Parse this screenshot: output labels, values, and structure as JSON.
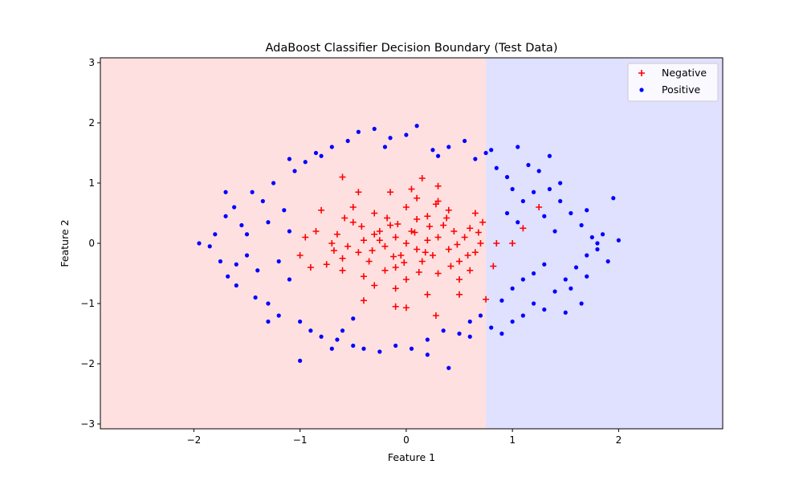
{
  "chart_data": {
    "type": "scatter",
    "title": "AdaBoost Classifier Decision Boundary (Test Data)",
    "xlabel": "Feature 1",
    "ylabel": "Feature 2",
    "xlim": [
      -2.88,
      2.98
    ],
    "ylim": [
      -3.08,
      3.08
    ],
    "x_ticks": [
      -2,
      -1,
      0,
      1,
      2
    ],
    "x_tick_labels": [
      "−2",
      "−1",
      "0",
      "1",
      "2"
    ],
    "y_ticks": [
      -3,
      -2,
      -1,
      0,
      1,
      2,
      3
    ],
    "y_tick_labels": [
      "−3",
      "−2",
      "−1",
      "0",
      "1",
      "2",
      "3"
    ],
    "grid": false,
    "legend": {
      "position": "top-right",
      "entries": [
        "Negative",
        "Positive"
      ]
    },
    "decision_boundary": {
      "threshold_x": 0.75,
      "left_region_class": "Negative",
      "right_region_class": "Positive",
      "left_region_color": "#ffe0e0",
      "right_region_color": "#e0e0ff"
    },
    "series": [
      {
        "name": "Negative",
        "marker": "plus",
        "color": "#ff0000",
        "points": [
          [
            0.0,
            0.0
          ],
          [
            0.1,
            -0.1
          ],
          [
            -0.1,
            0.1
          ],
          [
            0.2,
            0.05
          ],
          [
            -0.2,
            -0.05
          ],
          [
            0.05,
            0.2
          ],
          [
            -0.05,
            -0.2
          ],
          [
            0.3,
            0.1
          ],
          [
            -0.3,
            0.15
          ],
          [
            0.15,
            -0.3
          ],
          [
            -0.15,
            0.3
          ],
          [
            0.25,
            -0.2
          ],
          [
            -0.25,
            0.2
          ],
          [
            0.35,
            0.3
          ],
          [
            -0.35,
            -0.3
          ],
          [
            0.4,
            -0.1
          ],
          [
            -0.4,
            0.05
          ],
          [
            0.1,
            0.4
          ],
          [
            -0.1,
            -0.4
          ],
          [
            0.45,
            0.2
          ],
          [
            -0.45,
            -0.15
          ],
          [
            0.2,
            0.45
          ],
          [
            -0.2,
            -0.45
          ],
          [
            0.5,
            -0.3
          ],
          [
            -0.5,
            0.35
          ],
          [
            0.55,
            0.1
          ],
          [
            -0.55,
            -0.05
          ],
          [
            0.3,
            -0.5
          ],
          [
            -0.3,
            0.5
          ],
          [
            0.6,
            0.25
          ],
          [
            -0.6,
            -0.25
          ],
          [
            0.0,
            0.6
          ],
          [
            0.0,
            -0.6
          ],
          [
            0.65,
            -0.15
          ],
          [
            -0.65,
            0.15
          ],
          [
            0.4,
            0.55
          ],
          [
            -0.4,
            -0.55
          ],
          [
            0.7,
            0.0
          ],
          [
            -0.7,
            0.0
          ],
          [
            0.5,
            -0.6
          ],
          [
            -0.5,
            0.6
          ],
          [
            0.1,
            0.75
          ],
          [
            -0.1,
            -0.75
          ],
          [
            0.72,
            0.35
          ],
          [
            -0.75,
            -0.35
          ],
          [
            0.3,
            0.7
          ],
          [
            -0.3,
            -0.7
          ],
          [
            0.05,
            0.9
          ],
          [
            -0.15,
            0.85
          ],
          [
            0.2,
            -0.85
          ],
          [
            -0.8,
            0.55
          ],
          [
            -0.6,
            1.1
          ],
          [
            -0.45,
            0.85
          ],
          [
            0.3,
            0.95
          ],
          [
            -0.9,
            -0.4
          ],
          [
            -0.95,
            0.1
          ],
          [
            -1.0,
            -0.2
          ],
          [
            -0.85,
            0.2
          ],
          [
            -0.6,
            -0.45
          ],
          [
            0.6,
            -0.45
          ],
          [
            0.65,
            0.5
          ],
          [
            -0.4,
            -0.95
          ],
          [
            -0.1,
            -1.05
          ],
          [
            0.15,
            1.08
          ],
          [
            0.28,
            -1.2
          ],
          [
            0.5,
            -0.85
          ],
          [
            0.75,
            -0.93
          ],
          [
            0.82,
            -0.38
          ],
          [
            0.0,
            -1.07
          ],
          [
            0.28,
            0.65
          ],
          [
            -0.25,
            0.05
          ],
          [
            0.18,
            -0.15
          ],
          [
            -0.08,
            0.32
          ],
          [
            0.42,
            -0.38
          ],
          [
            -0.12,
            -0.22
          ],
          [
            0.08,
            0.18
          ],
          [
            -0.32,
            -0.12
          ],
          [
            0.22,
            0.28
          ],
          [
            -0.18,
            0.42
          ],
          [
            0.12,
            -0.48
          ],
          [
            0.38,
            0.42
          ],
          [
            -0.42,
            0.28
          ],
          [
            0.48,
            -0.02
          ],
          [
            -0.02,
            -0.32
          ],
          [
            0.58,
            -0.2
          ],
          [
            -0.58,
            0.42
          ],
          [
            0.68,
            0.18
          ],
          [
            -0.68,
            -0.12
          ],
          [
            1.0,
            0.0
          ],
          [
            1.1,
            0.25
          ],
          [
            1.25,
            0.6
          ],
          [
            0.85,
            0.0
          ]
        ]
      },
      {
        "name": "Positive",
        "marker": "circle",
        "color": "#0000ff",
        "points": [
          [
            -1.85,
            -0.05
          ],
          [
            -1.8,
            0.15
          ],
          [
            -1.75,
            -0.3
          ],
          [
            -1.7,
            0.45
          ],
          [
            -1.68,
            -0.55
          ],
          [
            -1.62,
            0.6
          ],
          [
            -1.6,
            -0.7
          ],
          [
            -1.55,
            0.3
          ],
          [
            -1.5,
            -0.2
          ],
          [
            -1.45,
            0.85
          ],
          [
            -1.42,
            -0.9
          ],
          [
            -1.35,
            0.7
          ],
          [
            -1.3,
            -1.0
          ],
          [
            -1.25,
            1.0
          ],
          [
            -1.2,
            -1.2
          ],
          [
            -1.15,
            0.55
          ],
          [
            -1.1,
            -0.6
          ],
          [
            -1.05,
            1.2
          ],
          [
            -1.0,
            -1.3
          ],
          [
            -0.95,
            1.35
          ],
          [
            -0.9,
            -1.45
          ],
          [
            -0.85,
            1.5
          ],
          [
            -0.8,
            -1.55
          ],
          [
            -0.7,
            1.6
          ],
          [
            -0.65,
            -1.6
          ],
          [
            -0.55,
            1.7
          ],
          [
            -0.5,
            -1.7
          ],
          [
            -0.45,
            1.85
          ],
          [
            -0.4,
            -1.75
          ],
          [
            -0.3,
            1.9
          ],
          [
            -0.25,
            -1.8
          ],
          [
            -0.15,
            1.75
          ],
          [
            -0.1,
            -1.7
          ],
          [
            0.0,
            1.8
          ],
          [
            0.05,
            -1.75
          ],
          [
            0.1,
            1.95
          ],
          [
            0.2,
            -1.6
          ],
          [
            0.25,
            1.55
          ],
          [
            0.35,
            -1.45
          ],
          [
            0.4,
            1.6
          ],
          [
            0.5,
            -1.5
          ],
          [
            0.55,
            1.7
          ],
          [
            0.6,
            -1.3
          ],
          [
            0.65,
            1.4
          ],
          [
            0.7,
            -1.2
          ],
          [
            0.75,
            1.5
          ],
          [
            0.8,
            -1.4
          ],
          [
            0.85,
            1.25
          ],
          [
            0.9,
            -1.5
          ],
          [
            0.95,
            1.1
          ],
          [
            1.0,
            -1.3
          ],
          [
            1.05,
            1.6
          ],
          [
            1.1,
            -1.2
          ],
          [
            1.15,
            1.3
          ],
          [
            1.2,
            -1.0
          ],
          [
            1.25,
            1.2
          ],
          [
            1.3,
            -1.1
          ],
          [
            1.35,
            0.9
          ],
          [
            1.4,
            -0.8
          ],
          [
            1.45,
            0.7
          ],
          [
            1.5,
            -0.6
          ],
          [
            1.55,
            0.5
          ],
          [
            1.6,
            -0.4
          ],
          [
            1.65,
            0.3
          ],
          [
            1.7,
            -0.2
          ],
          [
            1.75,
            0.1
          ],
          [
            1.8,
            0.0
          ],
          [
            1.85,
            0.15
          ],
          [
            1.9,
            -0.3
          ],
          [
            1.95,
            0.75
          ],
          [
            2.0,
            0.05
          ],
          [
            1.55,
            -0.75
          ],
          [
            1.7,
            0.55
          ],
          [
            1.65,
            -1.0
          ],
          [
            0.9,
            -0.95
          ],
          [
            1.0,
            -0.75
          ],
          [
            1.1,
            -0.6
          ],
          [
            1.2,
            -0.5
          ],
          [
            1.3,
            -0.35
          ],
          [
            1.0,
            0.9
          ],
          [
            1.1,
            0.7
          ],
          [
            1.2,
            0.85
          ],
          [
            1.3,
            0.45
          ],
          [
            1.4,
            0.2
          ],
          [
            0.95,
            0.5
          ],
          [
            1.05,
            0.35
          ],
          [
            1.45,
            1.0
          ],
          [
            1.35,
            1.45
          ],
          [
            -1.0,
            -1.95
          ],
          [
            0.4,
            -2.07
          ],
          [
            -1.95,
            0.0
          ],
          [
            -1.7,
            0.85
          ],
          [
            -1.6,
            -0.35
          ],
          [
            -1.5,
            0.15
          ],
          [
            -1.4,
            -0.45
          ],
          [
            -1.3,
            0.35
          ],
          [
            -1.2,
            -0.3
          ],
          [
            -1.1,
            0.2
          ],
          [
            -1.3,
            -1.3
          ],
          [
            -1.1,
            1.4
          ],
          [
            -0.6,
            -1.45
          ],
          [
            -0.2,
            1.6
          ],
          [
            0.2,
            -1.85
          ],
          [
            0.3,
            1.45
          ],
          [
            0.6,
            -1.55
          ],
          [
            -0.8,
            1.45
          ],
          [
            -0.5,
            -1.25
          ],
          [
            -0.7,
            -1.75
          ],
          [
            1.7,
            -0.55
          ],
          [
            1.8,
            -0.1
          ],
          [
            1.5,
            -1.15
          ],
          [
            0.8,
            1.55
          ]
        ]
      }
    ]
  }
}
